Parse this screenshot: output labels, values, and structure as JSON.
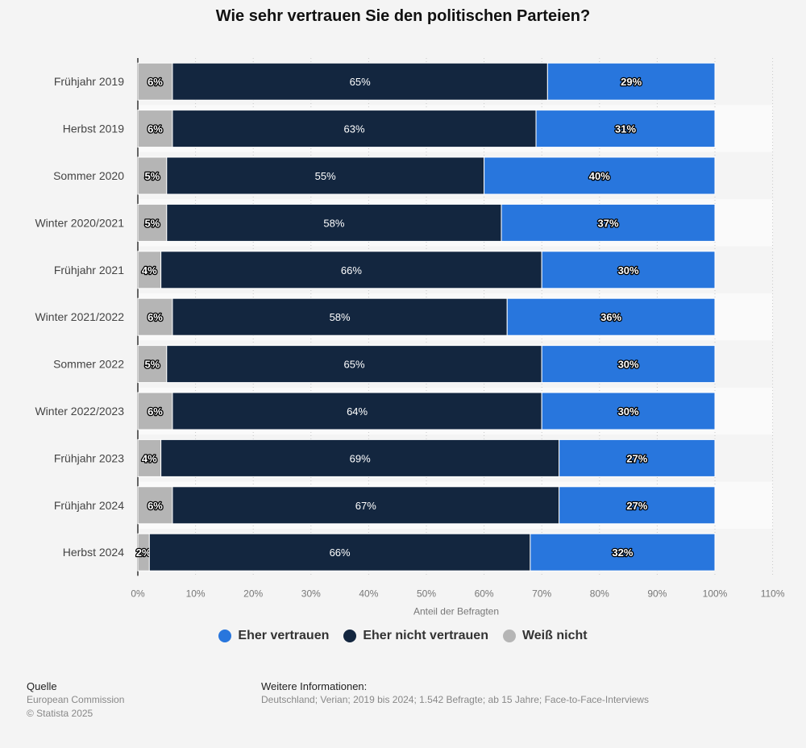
{
  "title": "Wie sehr vertrauen Sie den politischen Parteien?",
  "chart_data": {
    "type": "bar",
    "orientation": "horizontal",
    "stacked": true,
    "categories": [
      "Frühjahr 2019",
      "Herbst 2019",
      "Sommer 2020",
      "Winter 2020/2021",
      "Frühjahr 2021",
      "Winter 2021/2022",
      "Sommer 2022",
      "Winter 2022/2023",
      "Frühjahr 2023",
      "Frühjahr 2024",
      "Herbst 2024"
    ],
    "series": [
      {
        "name": "Weiß nicht",
        "color": "#b5b5b5",
        "values": [
          6,
          6,
          5,
          5,
          4,
          6,
          5,
          6,
          4,
          6,
          2
        ]
      },
      {
        "name": "Eher nicht vertrauen",
        "color": "#13263f",
        "values": [
          65,
          63,
          55,
          58,
          66,
          58,
          65,
          64,
          69,
          67,
          66
        ]
      },
      {
        "name": "Eher vertrauen",
        "color": "#2876dd",
        "values": [
          29,
          31,
          40,
          37,
          30,
          36,
          30,
          30,
          27,
          27,
          32
        ]
      }
    ],
    "xlabel": "Anteil der Befragten",
    "xlim": [
      0,
      110
    ],
    "xticks": [
      "0%",
      "10%",
      "20%",
      "30%",
      "40%",
      "50%",
      "60%",
      "70%",
      "80%",
      "90%",
      "100%",
      "110%"
    ],
    "value_suffix": "%",
    "grid": true,
    "legend_position": "bottom"
  },
  "legend": [
    {
      "label": "Eher vertrauen",
      "color": "#2876dd"
    },
    {
      "label": "Eher nicht vertrauen",
      "color": "#13263f"
    },
    {
      "label": "Weiß nicht",
      "color": "#b5b5b5"
    }
  ],
  "footer": {
    "source_heading": "Quelle",
    "source_lines": [
      "European Commission",
      "© Statista 2025"
    ],
    "info_heading": "Weitere Informationen:",
    "info_text": "Deutschland; Verian; 2019 bis 2024; 1.542 Befragte; ab 15 Jahre; Face-to-Face-Interviews"
  }
}
